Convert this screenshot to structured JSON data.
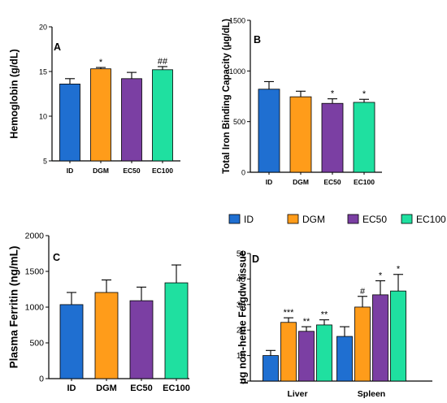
{
  "series_colors": {
    "ID": "#1f6fd1",
    "DGM": "#ff9c1a",
    "EC50": "#7b3fa3",
    "EC100": "#1fe0a0"
  },
  "legend": [
    "ID",
    "DGM",
    "EC50",
    "EC100"
  ],
  "chart_data": [
    {
      "type": "bar",
      "panel_label": "A",
      "ylabel": "Hemoglobin (g/dL)",
      "categories": [
        "ID",
        "DGM",
        "EC50",
        "EC100"
      ],
      "values": [
        13.6,
        15.3,
        14.2,
        15.2
      ],
      "errors": [
        0.6,
        0.15,
        0.7,
        0.35
      ],
      "annotations": [
        "",
        "*",
        "",
        "##"
      ],
      "ylim": [
        5,
        20
      ],
      "yticks": [
        "5",
        "10",
        "15",
        "20"
      ]
    },
    {
      "type": "bar",
      "panel_label": "B",
      "ylabel": "Total Iron Binding Capacity (μg/dL)",
      "categories": [
        "ID",
        "DGM",
        "EC50",
        "EC100"
      ],
      "values": [
        820,
        745,
        680,
        690
      ],
      "errors": [
        75,
        55,
        45,
        30
      ],
      "annotations": [
        "",
        "",
        "*",
        "*"
      ],
      "ylim": [
        0,
        1500
      ],
      "yticks": [
        "0",
        "500",
        "1000",
        "1500"
      ]
    },
    {
      "type": "bar",
      "panel_label": "C",
      "ylabel": "Plasma Ferritin (ng/mL)",
      "categories": [
        "ID",
        "DGM",
        "EC50",
        "EC100"
      ],
      "values": [
        1035,
        1205,
        1090,
        1340
      ],
      "errors": [
        170,
        175,
        190,
        250
      ],
      "annotations": [
        "",
        "",
        "",
        ""
      ],
      "ylim": [
        0,
        2000
      ],
      "yticks": [
        "0",
        "500",
        "1000",
        "1500",
        "2000"
      ]
    },
    {
      "type": "bar",
      "panel_label": "D",
      "ylabel": "μg non-heme Fe/gdw tissue",
      "categories": [
        "Liver",
        "Spleen"
      ],
      "series": [
        {
          "name": "ID",
          "values": [
            10,
            17.5
          ],
          "errors": [
            2,
            3.8
          ],
          "annotations": [
            "",
            ""
          ]
        },
        {
          "name": "DGM",
          "values": [
            23,
            29
          ],
          "errors": [
            1.8,
            4.2
          ],
          "annotations": [
            "***",
            "#"
          ]
        },
        {
          "name": "EC50",
          "values": [
            19.5,
            33.8
          ],
          "errors": [
            1.8,
            5.5
          ],
          "annotations": [
            "**",
            "*"
          ]
        },
        {
          "name": "EC100",
          "values": [
            22,
            35.3
          ],
          "errors": [
            2,
            6.5
          ],
          "annotations": [
            "**",
            "*"
          ]
        }
      ],
      "ylim": [
        0,
        50
      ],
      "yticks": [
        "0",
        "10",
        "20",
        "30",
        "40",
        "50"
      ]
    }
  ]
}
